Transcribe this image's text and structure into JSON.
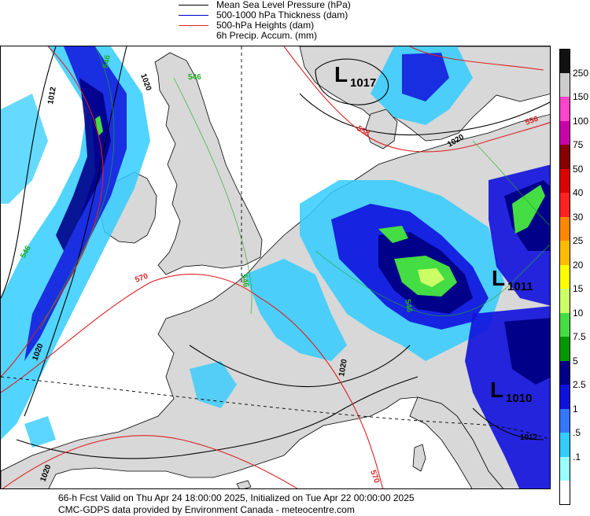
{
  "legend": {
    "mslp": "Mean Sea Level Pressure (hPa)",
    "thickness": "500-1000 hPa Thickness (dam)",
    "heights": "500-hPa Heights (dam)",
    "precip": "6h Precip. Accum. (mm)"
  },
  "colors": {
    "mslp": "#000000",
    "thickness": "#0000cc",
    "heights": "#dd2222",
    "thickness_label": "#22aa22",
    "land": "#d8d8d8",
    "sea": "#ffffff"
  },
  "pressure_centers": [
    {
      "letter": "L",
      "value": "1017"
    },
    {
      "letter": "L",
      "value": "1011"
    },
    {
      "letter": "L",
      "value": "1010"
    }
  ],
  "isobar_labels": [
    "1012",
    "1020",
    "1020",
    "1020",
    "1020",
    "1012",
    "1020"
  ],
  "height_labels": [
    "558",
    "556",
    "570",
    "570"
  ],
  "thickness_labels": [
    "546",
    "546",
    "546",
    "546",
    "546"
  ],
  "colorbar": {
    "levels": [
      "250",
      "150",
      "100",
      "75",
      "50",
      "40",
      "30",
      "25",
      "20",
      "15",
      "10",
      "7.5",
      "5",
      "2.5",
      "1",
      ".5",
      ".1"
    ],
    "colors": [
      "#111111",
      "#cccccc",
      "#ff44cc",
      "#cc00aa",
      "#880000",
      "#dd0000",
      "#ff2222",
      "#ff8800",
      "#ffbb00",
      "#ffff00",
      "#ccff66",
      "#44dd44",
      "#009900",
      "#000088",
      "#1111dd",
      "#3377ff",
      "#33ccff",
      "#99ffff",
      "#ffffff"
    ]
  },
  "footer": {
    "line1": "66-h Fcst Valid on Thu Apr 24 18:00:00 2025, Initialized on Tue Apr 22 00:00:00 2025",
    "line2": "CMC-GDPS data provided by Environment Canada - meteocentre.com"
  }
}
